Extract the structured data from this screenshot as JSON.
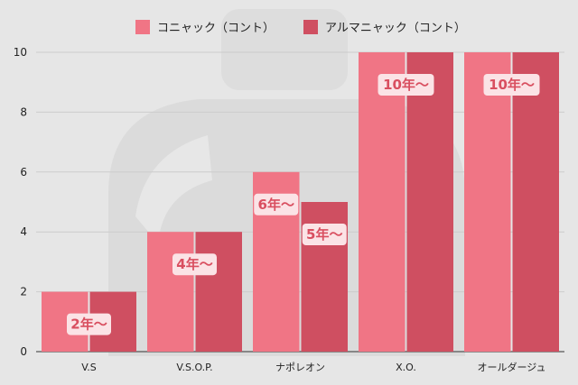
{
  "colors": {
    "cognac": "#f07585",
    "armagnac": "#cf4f61",
    "grid": "#cccccc",
    "axis": "#333333",
    "badge_bg": "#fbe3e6",
    "badge_text": "#d94f60"
  },
  "chart_data": {
    "type": "bar",
    "title": "",
    "xlabel": "",
    "ylabel": "",
    "ylim": [
      0,
      10
    ],
    "yticks": [
      0,
      2,
      4,
      6,
      8,
      10
    ],
    "grid": true,
    "legend_position": "top",
    "categories": [
      "V.S",
      "V.S.O.P.",
      "ナポレオン",
      "X.O.",
      "オールダージュ"
    ],
    "series": [
      {
        "name": "コニャック（コント）",
        "values": [
          2,
          4,
          6,
          10,
          10
        ]
      },
      {
        "name": "アルマニャック（コント）",
        "values": [
          2,
          4,
          5,
          10,
          10
        ]
      }
    ],
    "annotations": [
      {
        "category": 0,
        "series": "both",
        "text": "2年〜"
      },
      {
        "category": 1,
        "series": "both",
        "text": "4年〜"
      },
      {
        "category": 2,
        "series": 0,
        "text": "6年〜"
      },
      {
        "category": 2,
        "series": 1,
        "text": "5年〜"
      },
      {
        "category": 3,
        "series": "both",
        "text": "10年〜"
      },
      {
        "category": 4,
        "series": "both",
        "text": "10年〜"
      }
    ]
  }
}
